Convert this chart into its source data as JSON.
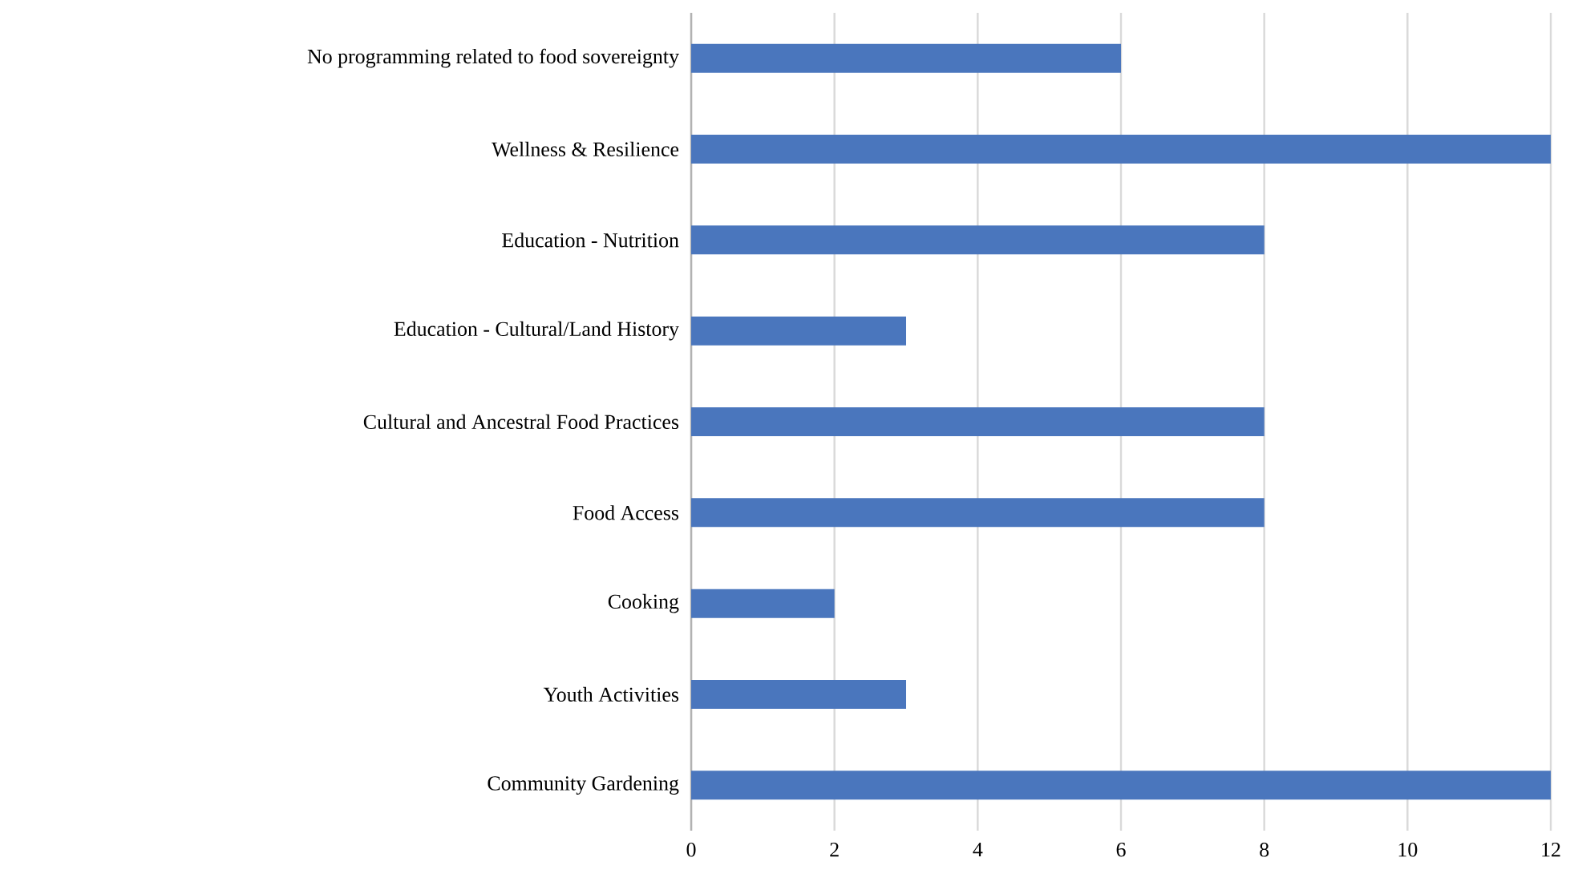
{
  "chart_data": {
    "type": "bar",
    "orientation": "horizontal",
    "categories": [
      "No programming related to food sovereignty",
      "Wellness & Resilience",
      "Education - Nutrition",
      "Education - Cultural/Land History",
      "Cultural and Ancestral Food Practices",
      "Food Access",
      "Cooking",
      "Youth Activities",
      "Community Gardening"
    ],
    "values": [
      6,
      12,
      8,
      3,
      8,
      8,
      2,
      3,
      12
    ],
    "color": "#4a76bd",
    "xlim": [
      0,
      12
    ],
    "xticks": [
      0,
      2,
      4,
      6,
      8,
      10,
      12
    ],
    "grid": "x"
  }
}
